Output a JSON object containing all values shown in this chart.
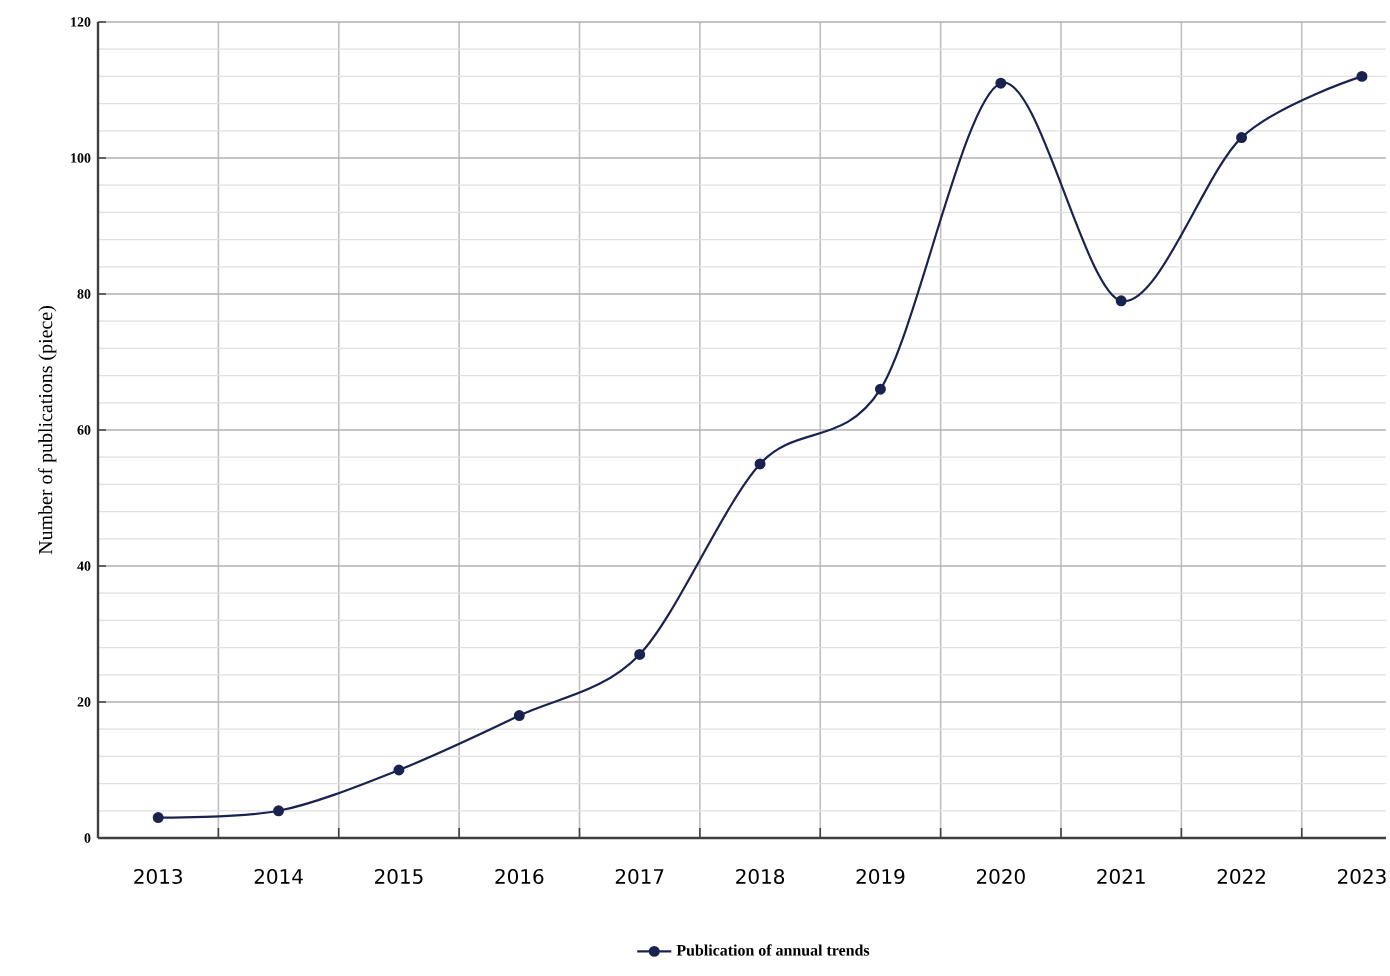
{
  "chart_data": {
    "type": "line",
    "ylabel": "Number of publications (piece)",
    "categories": [
      "2013",
      "2014",
      "2015",
      "2016",
      "2017",
      "2018",
      "2019",
      "2020",
      "2021",
      "2022",
      "2023"
    ],
    "series": [
      {
        "name": "Publication of annual trends",
        "color": "#1a2350",
        "values": [
          3,
          4,
          10,
          18,
          27,
          55,
          66,
          111,
          79,
          103,
          112
        ]
      }
    ],
    "ylim": [
      0,
      120
    ],
    "yticks": [
      0,
      20,
      40,
      60,
      80,
      100,
      120
    ],
    "grid": true,
    "legend": "bottom",
    "marker": "circle",
    "line_style": "solid"
  }
}
